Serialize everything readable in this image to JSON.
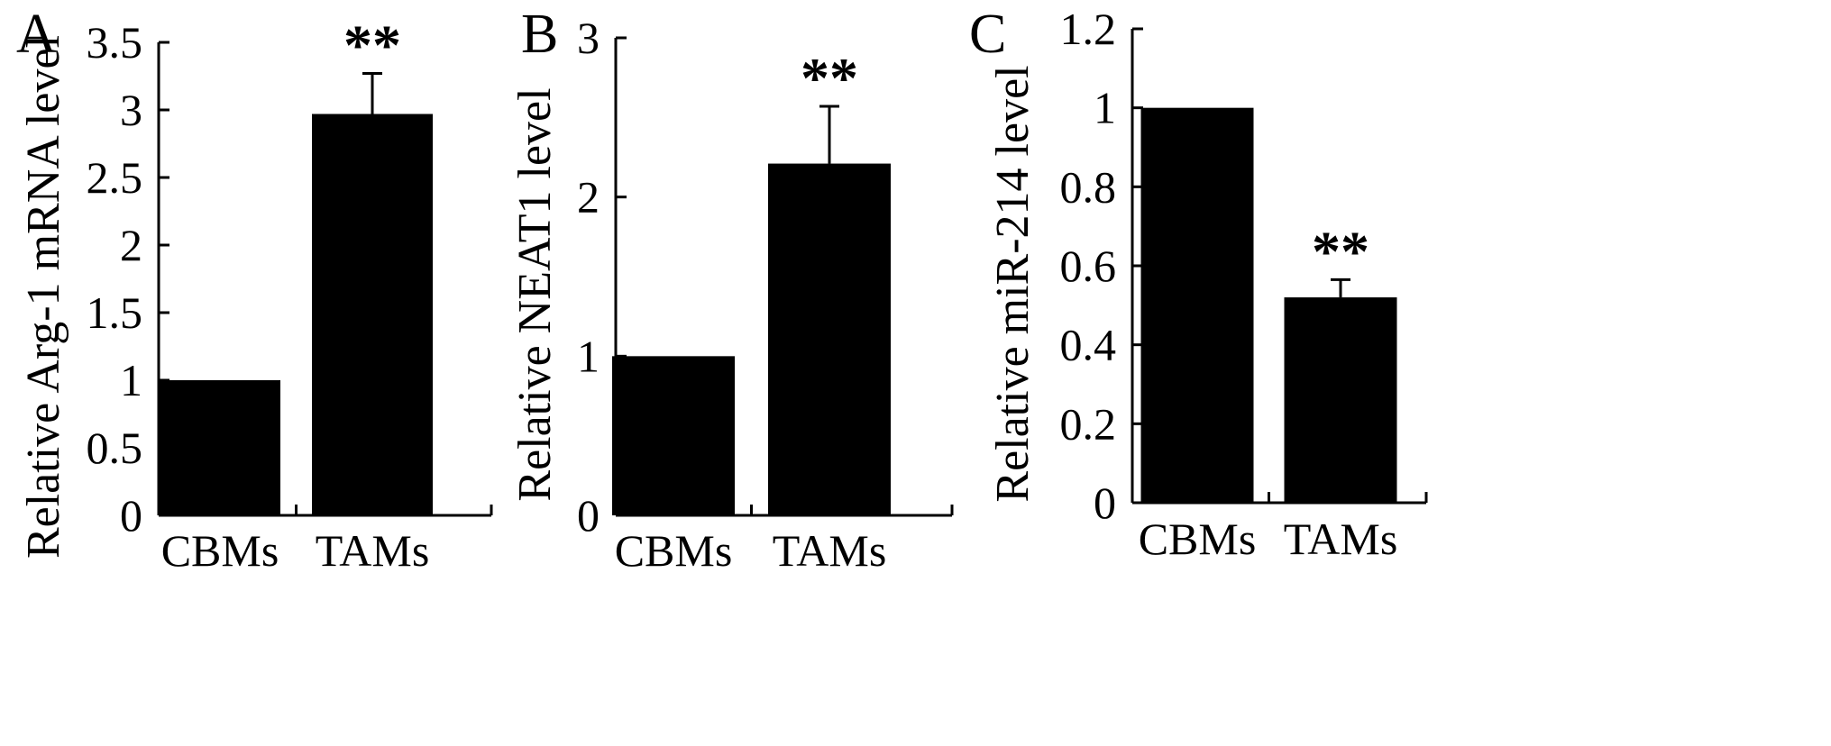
{
  "colors": {
    "bar": "#000000",
    "axis": "#000000",
    "background": "#ffffff"
  },
  "chart_data": [
    {
      "type": "bar",
      "panel": "A",
      "categories": [
        "CBMs",
        "TAMs"
      ],
      "values": [
        1,
        2.97
      ],
      "errors": [
        0,
        0.3
      ],
      "significance": [
        "",
        "**"
      ],
      "ylabel": "Relative Arg-1 mRNA level",
      "ylim": [
        0,
        3.5
      ],
      "yticks": [
        "0",
        "0.5",
        "1",
        "1.5",
        "2",
        "2.5",
        "3",
        "3.5"
      ],
      "grid": false
    },
    {
      "type": "bar",
      "panel": "B",
      "categories": [
        "CBMs",
        "TAMs"
      ],
      "values": [
        1,
        2.21
      ],
      "errors": [
        0,
        0.36
      ],
      "significance": [
        "",
        "**"
      ],
      "ylabel": "Relative NEAT1 level",
      "ylim": [
        0,
        3
      ],
      "yticks": [
        "0",
        "1",
        "2",
        "3"
      ],
      "grid": false
    },
    {
      "type": "bar",
      "panel": "C",
      "categories": [
        "CBMs",
        "TAMs"
      ],
      "values": [
        1,
        0.52
      ],
      "errors": [
        0,
        0.045
      ],
      "significance": [
        "",
        "**"
      ],
      "ylabel": "Relative miR-214 level",
      "ylim": [
        0,
        1.2
      ],
      "yticks": [
        "0",
        "0.2",
        "0.4",
        "0.6",
        "0.8",
        "1",
        "1.2"
      ],
      "grid": false
    }
  ]
}
